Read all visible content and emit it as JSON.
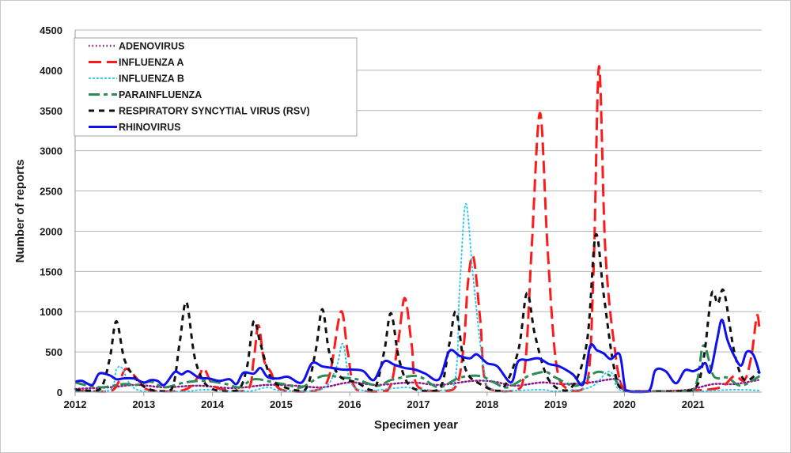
{
  "chart_data": {
    "type": "line",
    "title": "",
    "xlabel": "Specimen year",
    "ylabel": "Number of reports",
    "xlim": [
      2012,
      2022
    ],
    "ylim": [
      0,
      4500
    ],
    "x_ticks": [
      "2012",
      "2013",
      "2014",
      "2015",
      "2016",
      "2017",
      "2018",
      "2019",
      "2020",
      "2021"
    ],
    "y_ticks": [
      "0",
      "500",
      "1000",
      "1500",
      "2000",
      "2500",
      "3000",
      "3500",
      "4000",
      "4500"
    ],
    "grid": "horizontal",
    "legend_position": "top-left",
    "series": [
      {
        "name": "ADENOVIRUS",
        "color": "#8b1a8b",
        "dash": "dotted",
        "points": [
          [
            2012,
            40
          ],
          [
            2012.5,
            60
          ],
          [
            2012.9,
            90
          ],
          [
            2013.3,
            60
          ],
          [
            2013.8,
            80
          ],
          [
            2014.3,
            50
          ],
          [
            2014.8,
            90
          ],
          [
            2015.2,
            80
          ],
          [
            2015.6,
            60
          ],
          [
            2016,
            120
          ],
          [
            2016.4,
            90
          ],
          [
            2016.9,
            120
          ],
          [
            2017.3,
            90
          ],
          [
            2017.8,
            140
          ],
          [
            2018.1,
            130
          ],
          [
            2018.4,
            80
          ],
          [
            2018.8,
            120
          ],
          [
            2019.1,
            100
          ],
          [
            2019.5,
            120
          ],
          [
            2019.9,
            160
          ],
          [
            2020.0,
            20
          ],
          [
            2020.4,
            10
          ],
          [
            2020.8,
            20
          ],
          [
            2021.0,
            40
          ],
          [
            2021.3,
            100
          ],
          [
            2021.6,
            100
          ],
          [
            2021.95,
            150
          ]
        ]
      },
      {
        "name": "INFLUENZA A",
        "color": "#ff1a1a",
        "dash": "longdash",
        "points": [
          [
            2012,
            20
          ],
          [
            2012.5,
            10
          ],
          [
            2012.65,
            150
          ],
          [
            2012.75,
            290
          ],
          [
            2012.95,
            120
          ],
          [
            2013.1,
            20
          ],
          [
            2013.6,
            30
          ],
          [
            2013.8,
            200
          ],
          [
            2013.88,
            290
          ],
          [
            2014.05,
            60
          ],
          [
            2014.5,
            20
          ],
          [
            2014.6,
            400
          ],
          [
            2014.67,
            830
          ],
          [
            2014.75,
            400
          ],
          [
            2014.85,
            250
          ],
          [
            2015.0,
            30
          ],
          [
            2015.5,
            20
          ],
          [
            2015.7,
            200
          ],
          [
            2015.87,
            1000
          ],
          [
            2015.97,
            500
          ],
          [
            2016.1,
            30
          ],
          [
            2016.55,
            20
          ],
          [
            2016.7,
            600
          ],
          [
            2016.8,
            1170
          ],
          [
            2016.9,
            600
          ],
          [
            2017.0,
            60
          ],
          [
            2017.5,
            30
          ],
          [
            2017.65,
            500
          ],
          [
            2017.72,
            1350
          ],
          [
            2017.8,
            1680
          ],
          [
            2017.9,
            900
          ],
          [
            2018.0,
            60
          ],
          [
            2018.4,
            20
          ],
          [
            2018.55,
            300
          ],
          [
            2018.65,
            1800
          ],
          [
            2018.77,
            3470
          ],
          [
            2018.88,
            1800
          ],
          [
            2019.0,
            400
          ],
          [
            2019.15,
            50
          ],
          [
            2019.45,
            80
          ],
          [
            2019.55,
            1500
          ],
          [
            2019.63,
            4050
          ],
          [
            2019.72,
            1800
          ],
          [
            2019.85,
            600
          ],
          [
            2020.0,
            30
          ],
          [
            2020.4,
            10
          ],
          [
            2021.0,
            20
          ],
          [
            2021.4,
            60
          ],
          [
            2021.6,
            200
          ],
          [
            2021.75,
            150
          ],
          [
            2021.85,
            450
          ],
          [
            2021.93,
            950
          ],
          [
            2021.97,
            750
          ]
        ]
      },
      {
        "name": "INFLUENZA B",
        "color": "#1ec8f0",
        "dash": "shortdash",
        "points": [
          [
            2012,
            10
          ],
          [
            2012.5,
            20
          ],
          [
            2012.6,
            280
          ],
          [
            2012.68,
            300
          ],
          [
            2012.8,
            100
          ],
          [
            2013.0,
            10
          ],
          [
            2013.6,
            10
          ],
          [
            2013.9,
            30
          ],
          [
            2014.5,
            10
          ],
          [
            2014.8,
            60
          ],
          [
            2015.0,
            20
          ],
          [
            2015.6,
            40
          ],
          [
            2015.8,
            300
          ],
          [
            2015.9,
            600
          ],
          [
            2016.0,
            150
          ],
          [
            2016.2,
            20
          ],
          [
            2016.8,
            60
          ],
          [
            2017.0,
            30
          ],
          [
            2017.5,
            50
          ],
          [
            2017.6,
            1300
          ],
          [
            2017.69,
            2340
          ],
          [
            2017.8,
            1400
          ],
          [
            2017.95,
            300
          ],
          [
            2018.1,
            30
          ],
          [
            2018.8,
            30
          ],
          [
            2019.0,
            10
          ],
          [
            2019.5,
            60
          ],
          [
            2019.75,
            250
          ],
          [
            2019.85,
            200
          ],
          [
            2020.0,
            10
          ],
          [
            2021.0,
            10
          ],
          [
            2021.6,
            30
          ],
          [
            2021.97,
            20
          ]
        ]
      },
      {
        "name": "PARAINFLUENZA",
        "color": "#2e8b57",
        "dash": "dashdot",
        "points": [
          [
            2012,
            120
          ],
          [
            2012.2,
            80
          ],
          [
            2012.4,
            60
          ],
          [
            2012.7,
            100
          ],
          [
            2012.9,
            90
          ],
          [
            2013.1,
            130
          ],
          [
            2013.3,
            60
          ],
          [
            2013.6,
            120
          ],
          [
            2013.9,
            140
          ],
          [
            2014.2,
            100
          ],
          [
            2014.4,
            60
          ],
          [
            2014.6,
            160
          ],
          [
            2014.9,
            120
          ],
          [
            2015.1,
            90
          ],
          [
            2015.3,
            60
          ],
          [
            2015.6,
            200
          ],
          [
            2015.9,
            180
          ],
          [
            2016.1,
            160
          ],
          [
            2016.4,
            80
          ],
          [
            2016.6,
            150
          ],
          [
            2016.9,
            200
          ],
          [
            2017.05,
            180
          ],
          [
            2017.3,
            60
          ],
          [
            2017.6,
            180
          ],
          [
            2017.9,
            200
          ],
          [
            2018.1,
            120
          ],
          [
            2018.3,
            60
          ],
          [
            2018.6,
            200
          ],
          [
            2018.85,
            250
          ],
          [
            2019.0,
            180
          ],
          [
            2019.3,
            80
          ],
          [
            2019.6,
            250
          ],
          [
            2019.85,
            170
          ],
          [
            2020.0,
            20
          ],
          [
            2020.5,
            10
          ],
          [
            2021.0,
            30
          ],
          [
            2021.15,
            580
          ],
          [
            2021.3,
            200
          ],
          [
            2021.5,
            180
          ],
          [
            2021.7,
            80
          ],
          [
            2021.97,
            200
          ]
        ]
      },
      {
        "name": "RESPIRATORY SYNCYTIAL VIRUS (RSV)",
        "color": "#111111",
        "dash": "dash",
        "points": [
          [
            2012,
            30
          ],
          [
            2012.35,
            30
          ],
          [
            2012.5,
            400
          ],
          [
            2012.6,
            880
          ],
          [
            2012.72,
            400
          ],
          [
            2012.9,
            150
          ],
          [
            2013.1,
            30
          ],
          [
            2013.4,
            30
          ],
          [
            2013.52,
            600
          ],
          [
            2013.62,
            1120
          ],
          [
            2013.75,
            400
          ],
          [
            2013.95,
            60
          ],
          [
            2014.35,
            20
          ],
          [
            2014.5,
            300
          ],
          [
            2014.6,
            880
          ],
          [
            2014.7,
            600
          ],
          [
            2014.85,
            180
          ],
          [
            2015.05,
            60
          ],
          [
            2015.35,
            30
          ],
          [
            2015.5,
            500
          ],
          [
            2015.6,
            1030
          ],
          [
            2015.7,
            500
          ],
          [
            2015.85,
            200
          ],
          [
            2016.1,
            120
          ],
          [
            2016.35,
            30
          ],
          [
            2016.5,
            500
          ],
          [
            2016.6,
            980
          ],
          [
            2016.72,
            400
          ],
          [
            2016.9,
            60
          ],
          [
            2017.3,
            30
          ],
          [
            2017.45,
            600
          ],
          [
            2017.55,
            1000
          ],
          [
            2017.68,
            300
          ],
          [
            2017.9,
            100
          ],
          [
            2018.2,
            20
          ],
          [
            2018.45,
            500
          ],
          [
            2018.58,
            1230
          ],
          [
            2018.7,
            700
          ],
          [
            2018.9,
            150
          ],
          [
            2019.2,
            30
          ],
          [
            2019.45,
            600
          ],
          [
            2019.58,
            1950
          ],
          [
            2019.7,
            1200
          ],
          [
            2019.85,
            300
          ],
          [
            2020.0,
            20
          ],
          [
            2020.5,
            10
          ],
          [
            2021.0,
            30
          ],
          [
            2021.15,
            400
          ],
          [
            2021.27,
            1220
          ],
          [
            2021.36,
            1100
          ],
          [
            2021.45,
            1250
          ],
          [
            2021.6,
            500
          ],
          [
            2021.75,
            150
          ],
          [
            2021.97,
            260
          ]
        ]
      },
      {
        "name": "RHINOVIRUS",
        "color": "#1010ee",
        "dash": "solid",
        "points": [
          [
            2012,
            130
          ],
          [
            2012.1,
            140
          ],
          [
            2012.25,
            90
          ],
          [
            2012.35,
            230
          ],
          [
            2012.5,
            210
          ],
          [
            2012.6,
            160
          ],
          [
            2012.7,
            170
          ],
          [
            2012.85,
            170
          ],
          [
            2013.0,
            120
          ],
          [
            2013.1,
            150
          ],
          [
            2013.2,
            140
          ],
          [
            2013.3,
            90
          ],
          [
            2013.45,
            250
          ],
          [
            2013.55,
            220
          ],
          [
            2013.65,
            260
          ],
          [
            2013.8,
            180
          ],
          [
            2013.95,
            170
          ],
          [
            2014.1,
            140
          ],
          [
            2014.25,
            160
          ],
          [
            2014.35,
            100
          ],
          [
            2014.45,
            240
          ],
          [
            2014.6,
            230
          ],
          [
            2014.7,
            300
          ],
          [
            2014.8,
            190
          ],
          [
            2014.95,
            170
          ],
          [
            2015.1,
            190
          ],
          [
            2015.3,
            120
          ],
          [
            2015.45,
            360
          ],
          [
            2015.6,
            320
          ],
          [
            2015.75,
            300
          ],
          [
            2015.9,
            280
          ],
          [
            2016.05,
            280
          ],
          [
            2016.2,
            260
          ],
          [
            2016.35,
            150
          ],
          [
            2016.5,
            380
          ],
          [
            2016.65,
            340
          ],
          [
            2016.8,
            300
          ],
          [
            2016.95,
            280
          ],
          [
            2017.1,
            230
          ],
          [
            2017.3,
            160
          ],
          [
            2017.45,
            510
          ],
          [
            2017.6,
            450
          ],
          [
            2017.75,
            420
          ],
          [
            2017.85,
            470
          ],
          [
            2018.0,
            360
          ],
          [
            2018.15,
            320
          ],
          [
            2018.35,
            120
          ],
          [
            2018.45,
            380
          ],
          [
            2018.6,
            400
          ],
          [
            2018.75,
            420
          ],
          [
            2018.9,
            350
          ],
          [
            2019.05,
            320
          ],
          [
            2019.25,
            220
          ],
          [
            2019.4,
            100
          ],
          [
            2019.5,
            570
          ],
          [
            2019.6,
            520
          ],
          [
            2019.7,
            480
          ],
          [
            2019.8,
            410
          ],
          [
            2019.93,
            470
          ],
          [
            2020.0,
            100
          ],
          [
            2020.05,
            10
          ],
          [
            2020.35,
            10
          ],
          [
            2020.45,
            270
          ],
          [
            2020.6,
            260
          ],
          [
            2020.75,
            110
          ],
          [
            2020.88,
            270
          ],
          [
            2021.0,
            260
          ],
          [
            2021.1,
            300
          ],
          [
            2021.18,
            360
          ],
          [
            2021.25,
            250
          ],
          [
            2021.35,
            650
          ],
          [
            2021.42,
            900
          ],
          [
            2021.5,
            650
          ],
          [
            2021.6,
            450
          ],
          [
            2021.7,
            330
          ],
          [
            2021.78,
            500
          ],
          [
            2021.88,
            460
          ],
          [
            2021.97,
            230
          ]
        ]
      }
    ]
  }
}
